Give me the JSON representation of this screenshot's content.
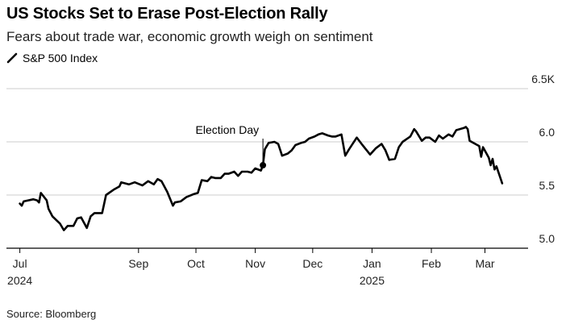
{
  "header": {
    "title": "US Stocks Set to Erase Post-Election Rally",
    "subtitle": "Fears about trade war, economic growth weigh on sentiment"
  },
  "footer": {
    "source": "Source: Bloomberg"
  },
  "colors": {
    "line": "#000000",
    "grid": "#cccccc",
    "axis": "#000000"
  },
  "chart_data": {
    "type": "line",
    "title": "US Stocks Set to Erase Post-Election Rally",
    "subtitle": "Fears about trade war, economic growth weigh on sentiment",
    "legend": "top-left",
    "grid": true,
    "y_axis_side": "right",
    "ylim": [
      5.0,
      6.5
    ],
    "yticks": [
      {
        "value": 5.0,
        "label": "5.0"
      },
      {
        "value": 5.5,
        "label": "5.5"
      },
      {
        "value": 6.0,
        "label": "6.0"
      },
      {
        "value": 6.5,
        "label": "6.5K"
      }
    ],
    "xlim": [
      "2024-06-24",
      "2025-03-13"
    ],
    "xticks": [
      {
        "date": "2024-07-01",
        "label": "Jul",
        "sublabel": "2024"
      },
      {
        "date": "2024-09-01",
        "label": "Sep",
        "sublabel": ""
      },
      {
        "date": "2024-10-01",
        "label": "Oct",
        "sublabel": ""
      },
      {
        "date": "2024-11-01",
        "label": "Nov",
        "sublabel": ""
      },
      {
        "date": "2024-12-01",
        "label": "Dec",
        "sublabel": ""
      },
      {
        "date": "2025-01-01",
        "label": "Jan",
        "sublabel": "2025"
      },
      {
        "date": "2025-02-01",
        "label": "Feb",
        "sublabel": ""
      },
      {
        "date": "2025-03-01",
        "label": "Mar",
        "sublabel": ""
      }
    ],
    "annotations": [
      {
        "text": "Election Day",
        "date": "2024-11-05",
        "value": 5.78
      }
    ],
    "series": [
      {
        "name": "S&P 500 Index",
        "points": [
          [
            "2024-07-01",
            5.42
          ],
          [
            "2024-07-02",
            5.4
          ],
          [
            "2024-07-03",
            5.44
          ],
          [
            "2024-07-08",
            5.46
          ],
          [
            "2024-07-10",
            5.45
          ],
          [
            "2024-07-11",
            5.43
          ],
          [
            "2024-07-12",
            5.52
          ],
          [
            "2024-07-15",
            5.45
          ],
          [
            "2024-07-16",
            5.37
          ],
          [
            "2024-07-18",
            5.3
          ],
          [
            "2024-07-22",
            5.23
          ],
          [
            "2024-07-24",
            5.17
          ],
          [
            "2024-07-26",
            5.21
          ],
          [
            "2024-07-29",
            5.21
          ],
          [
            "2024-07-31",
            5.28
          ],
          [
            "2024-08-02",
            5.29
          ],
          [
            "2024-08-05",
            5.19
          ],
          [
            "2024-08-07",
            5.3
          ],
          [
            "2024-08-09",
            5.33
          ],
          [
            "2024-08-13",
            5.33
          ],
          [
            "2024-08-15",
            5.5
          ],
          [
            "2024-08-19",
            5.55
          ],
          [
            "2024-08-22",
            5.58
          ],
          [
            "2024-08-23",
            5.62
          ],
          [
            "2024-08-27",
            5.6
          ],
          [
            "2024-08-30",
            5.62
          ],
          [
            "2024-09-03",
            5.59
          ],
          [
            "2024-09-06",
            5.63
          ],
          [
            "2024-09-09",
            5.6
          ],
          [
            "2024-09-11",
            5.65
          ],
          [
            "2024-09-13",
            5.63
          ],
          [
            "2024-09-16",
            5.53
          ],
          [
            "2024-09-19",
            5.4
          ],
          [
            "2024-09-20",
            5.43
          ],
          [
            "2024-09-23",
            5.44
          ],
          [
            "2024-09-26",
            5.48
          ],
          [
            "2024-09-30",
            5.51
          ],
          [
            "2024-10-02",
            5.52
          ],
          [
            "2024-10-04",
            5.64
          ],
          [
            "2024-10-07",
            5.63
          ],
          [
            "2024-10-09",
            5.67
          ],
          [
            "2024-10-11",
            5.66
          ],
          [
            "2024-10-14",
            5.66
          ],
          [
            "2024-10-16",
            5.7
          ],
          [
            "2024-10-18",
            5.7
          ],
          [
            "2024-10-21",
            5.72
          ],
          [
            "2024-10-23",
            5.68
          ],
          [
            "2024-10-25",
            5.72
          ],
          [
            "2024-10-28",
            5.72
          ],
          [
            "2024-10-30",
            5.71
          ],
          [
            "2024-11-01",
            5.75
          ],
          [
            "2024-11-04",
            5.73
          ],
          [
            "2024-11-05",
            5.78
          ],
          [
            "2024-11-06",
            5.93
          ],
          [
            "2024-11-08",
            5.99
          ],
          [
            "2024-11-11",
            6.0
          ],
          [
            "2024-11-13",
            5.98
          ],
          [
            "2024-11-15",
            5.87
          ],
          [
            "2024-11-18",
            5.89
          ],
          [
            "2024-11-20",
            5.92
          ],
          [
            "2024-11-22",
            5.97
          ],
          [
            "2024-11-25",
            5.99
          ],
          [
            "2024-11-27",
            6.0
          ],
          [
            "2024-11-29",
            6.03
          ],
          [
            "2024-12-02",
            6.05
          ],
          [
            "2024-12-04",
            6.07
          ],
          [
            "2024-12-06",
            6.08
          ],
          [
            "2024-12-09",
            6.06
          ],
          [
            "2024-12-11",
            6.05
          ],
          [
            "2024-12-13",
            6.05
          ],
          [
            "2024-12-16",
            6.07
          ],
          [
            "2024-12-18",
            5.87
          ],
          [
            "2024-12-20",
            5.93
          ],
          [
            "2024-12-24",
            6.04
          ],
          [
            "2024-12-27",
            5.97
          ],
          [
            "2024-12-31",
            5.88
          ],
          [
            "2025-01-03",
            5.94
          ],
          [
            "2025-01-06",
            5.98
          ],
          [
            "2025-01-08",
            5.92
          ],
          [
            "2025-01-10",
            5.83
          ],
          [
            "2025-01-13",
            5.84
          ],
          [
            "2025-01-15",
            5.95
          ],
          [
            "2025-01-17",
            6.0
          ],
          [
            "2025-01-21",
            6.05
          ],
          [
            "2025-01-23",
            6.12
          ],
          [
            "2025-01-24",
            6.1
          ],
          [
            "2025-01-27",
            6.01
          ],
          [
            "2025-01-29",
            6.04
          ],
          [
            "2025-01-31",
            6.04
          ],
          [
            "2025-02-03",
            6.0
          ],
          [
            "2025-02-05",
            6.06
          ],
          [
            "2025-02-07",
            6.03
          ],
          [
            "2025-02-10",
            6.07
          ],
          [
            "2025-02-12",
            6.05
          ],
          [
            "2025-02-14",
            6.11
          ],
          [
            "2025-02-18",
            6.13
          ],
          [
            "2025-02-19",
            6.14
          ],
          [
            "2025-02-20",
            6.12
          ],
          [
            "2025-02-21",
            6.01
          ],
          [
            "2025-02-24",
            5.98
          ],
          [
            "2025-02-26",
            5.96
          ],
          [
            "2025-02-27",
            5.86
          ],
          [
            "2025-02-28",
            5.95
          ],
          [
            "2025-03-03",
            5.85
          ],
          [
            "2025-03-04",
            5.78
          ],
          [
            "2025-03-05",
            5.84
          ],
          [
            "2025-03-06",
            5.74
          ],
          [
            "2025-03-07",
            5.77
          ],
          [
            "2025-03-10",
            5.61
          ]
        ]
      }
    ]
  }
}
